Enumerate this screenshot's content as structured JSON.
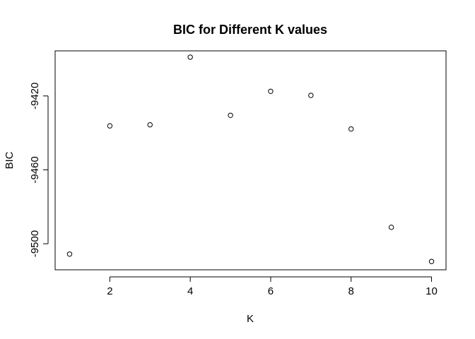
{
  "chart_data": {
    "type": "scatter",
    "title": "BIC for Different K values",
    "xlabel": "K",
    "ylabel": "BIC",
    "x": [
      1,
      2,
      3,
      4,
      5,
      6,
      7,
      8,
      9,
      10
    ],
    "y": [
      -9505.6,
      -9436.2,
      -9435.6,
      -9399.0,
      -9430.5,
      -9417.5,
      -9419.7,
      -9437.9,
      -9491.1,
      -9509.6
    ],
    "xlim": [
      0.64,
      10.36
    ],
    "ylim": [
      -9514.1,
      -9395.6
    ],
    "xticks": [
      2,
      4,
      6,
      8,
      10
    ],
    "xtick_labels": [
      "2",
      "4",
      "6",
      "8",
      "10"
    ],
    "yticks": [
      -9500,
      -9460,
      -9420
    ],
    "ytick_labels": [
      "-9500",
      "-9460",
      "-9420"
    ],
    "grid": false,
    "marker": "open-circle",
    "colors": {
      "points": "#000000",
      "frame": "#000000",
      "background": "#ffffff"
    }
  }
}
